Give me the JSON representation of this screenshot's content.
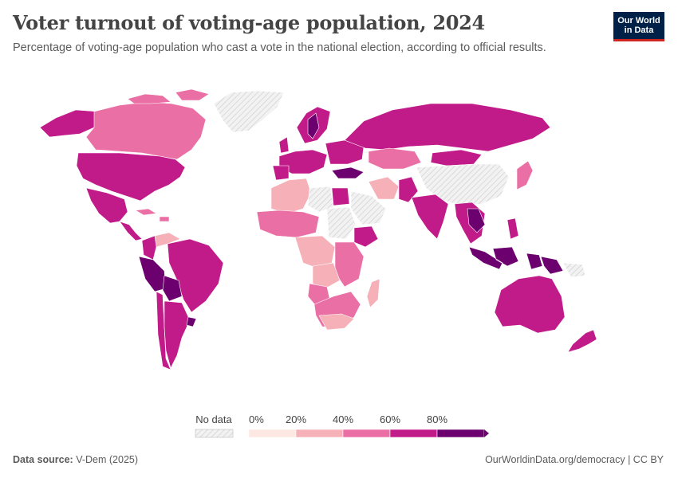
{
  "header": {
    "title": "Voter turnout of voting-age population, 2024",
    "subtitle": "Percentage of voting-age population who cast a vote in the national election, according to official results."
  },
  "logo": {
    "line1": "Our World",
    "line2": "in Data"
  },
  "legend": {
    "no_data_label": "No data",
    "bins": [
      {
        "label": "0%",
        "color": "#fce7e2"
      },
      {
        "label": "20%",
        "color": "#f5b0b8"
      },
      {
        "label": "40%",
        "color": "#ea6fa4"
      },
      {
        "label": "60%",
        "color": "#c11b8a"
      },
      {
        "label": "80%",
        "color": "#6d006f"
      }
    ]
  },
  "colors": {
    "no_data": "#e6e6e6",
    "ocean": "#ffffff",
    "border": "#ffffff"
  },
  "footer": {
    "source_label": "Data source:",
    "source_value": "V-Dem (2025)",
    "url": "OurWorldinData.org/democracy | CC BY"
  }
}
